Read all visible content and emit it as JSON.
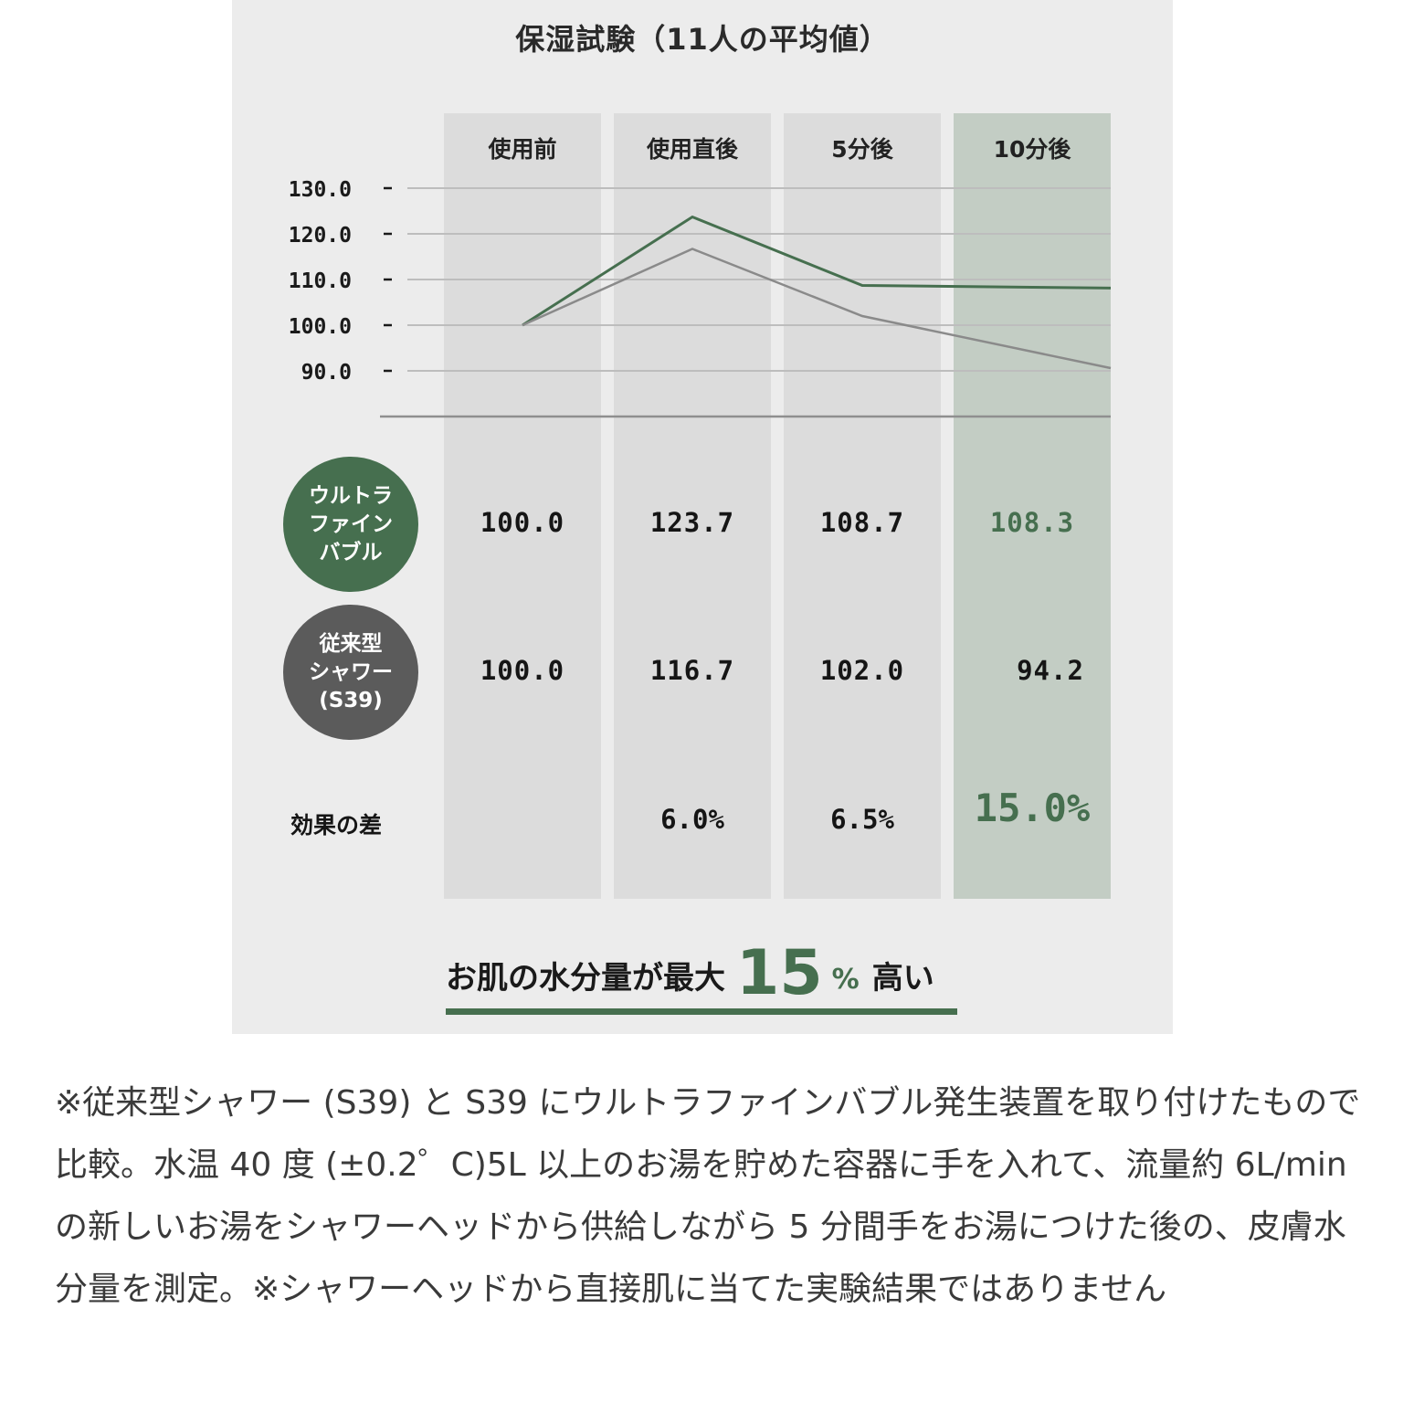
{
  "chart_data": {
    "type": "line",
    "title": "保湿試験（11人の平均値）",
    "categories": [
      "使用前",
      "使用直後",
      "5分後",
      "10分後"
    ],
    "y_ticks": [
      "130.0",
      "120.0",
      "110.0",
      "100.0",
      "90.0"
    ],
    "ylim": [
      80,
      130
    ],
    "grid": true,
    "series": [
      {
        "name": "ウルトラファインバブル",
        "label_lines": [
          "ウルトラ",
          "ファイン",
          "バブル"
        ],
        "color": "#466f4f",
        "values": [
          100.0,
          123.7,
          108.7,
          108.3
        ]
      },
      {
        "name": "従来型シャワー(S39)",
        "label_lines": [
          "従来型",
          "シャワー",
          "(S39)"
        ],
        "color": "#8a8a8a",
        "values": [
          100.0,
          116.7,
          102.0,
          94.2
        ]
      }
    ],
    "value_labels": {
      "ufb": [
        "100.0",
        "123.7",
        "108.7",
        "108.3"
      ],
      "conventional": [
        "100.0",
        "116.7",
        "102.0",
        "94.2"
      ]
    },
    "difference": {
      "label": "効果の差",
      "values": [
        "",
        "6.0%",
        "6.5%",
        "15.0%"
      ]
    },
    "highlight_column": "10分後"
  },
  "headline": {
    "prefix": "お肌の水分量が最大",
    "number": "15",
    "unit": "%",
    "suffix": "高い"
  },
  "footnote": "※従来型シャワー (S39) と S39 にウルトラファインバブル発生装置を取り付けたもので比較。水温 40 度 (±0.2゜C)5L 以上のお湯を貯めた容器に手を入れて、流量約 6L/min の新しいお湯をシャワーヘッドから供給しながら 5 分間手をお湯につけた後の、皮膚水分量を測定。※シャワーヘッドから直接肌に当てた実験結果ではありません",
  "colors": {
    "accent": "#466f4f",
    "panel_bg": "#ececec",
    "column_bg": "#dcdcdc",
    "highlight_bg": "#c3cdc4",
    "conventional_line": "#8a8a8a"
  }
}
